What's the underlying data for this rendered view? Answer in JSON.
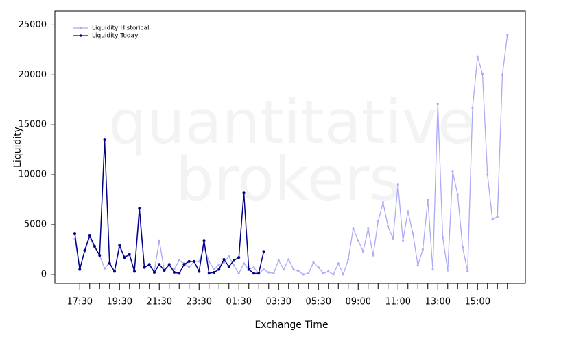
{
  "chart_data": {
    "type": "line",
    "watermark": [
      "quantitative",
      "brokers"
    ],
    "x_label": "Exchange Time",
    "y_label": "Liquidity",
    "legend_position": "top-left",
    "categories": [
      null,
      "17:30",
      null,
      null,
      null,
      null,
      null,
      null,
      null,
      "19:30",
      null,
      null,
      null,
      null,
      null,
      null,
      null,
      "21:30",
      null,
      null,
      null,
      null,
      null,
      null,
      null,
      "23:30",
      null,
      null,
      null,
      null,
      null,
      null,
      null,
      "01:30",
      null,
      null,
      null,
      null,
      null,
      null,
      null,
      "03:30",
      null,
      null,
      null,
      null,
      null,
      null,
      null,
      "05:30",
      null,
      null,
      null,
      null,
      null,
      null,
      null,
      "09:00",
      null,
      null,
      null,
      null,
      null,
      null,
      null,
      "11:00",
      null,
      null,
      null,
      null,
      null,
      null,
      null,
      "13:00",
      null,
      null,
      null,
      null,
      null,
      null,
      null,
      "15:00",
      null,
      null,
      null,
      null,
      null,
      null
    ],
    "ylim": [
      -900,
      26400
    ],
    "yticks": [
      0,
      5000,
      10000,
      15000,
      20000,
      25000
    ],
    "series": [
      {
        "name": "Liquidity Historical",
        "color": "#aaaaf5",
        "values": [
          3600,
          500,
          2300,
          3700,
          2700,
          1900,
          600,
          1200,
          300,
          2700,
          1800,
          1900,
          400,
          6000,
          700,
          900,
          300,
          3400,
          400,
          900,
          500,
          1400,
          1100,
          700,
          1300,
          1300,
          2700,
          1300,
          500,
          1000,
          1200,
          1800,
          900,
          100,
          1100,
          500,
          700,
          100,
          500,
          200,
          100,
          1400,
          500,
          1500,
          500,
          300,
          0,
          100,
          1200,
          700,
          100,
          300,
          0,
          1100,
          0,
          1500,
          4600,
          3400,
          2300,
          4600,
          1900,
          5300,
          7200,
          4800,
          3600,
          9000,
          3400,
          6300,
          4100,
          900,
          2500,
          7500,
          500,
          17100,
          3700,
          400,
          10300,
          8000,
          2700,
          300,
          16700,
          21800,
          20100,
          10000,
          5500,
          5800,
          20000,
          24000
        ]
      },
      {
        "name": "Liquidity Today",
        "color": "#00008b",
        "values": [
          4100,
          500,
          2400,
          3900,
          2800,
          1900,
          13500,
          1100,
          300,
          2900,
          1700,
          2000,
          300,
          6600,
          700,
          1000,
          200,
          1000,
          400,
          1000,
          200,
          100,
          1000,
          1300,
          1300,
          300,
          3400,
          100,
          200,
          500,
          1500,
          800,
          1400,
          1700,
          8200,
          500,
          100,
          100,
          2300,
          null,
          null,
          null,
          null,
          null,
          null,
          null,
          null,
          null,
          null,
          null,
          null,
          null,
          null,
          null,
          null,
          null,
          null,
          null,
          null,
          null,
          null,
          null,
          null,
          null,
          null,
          null,
          null,
          null,
          null,
          null,
          null,
          null,
          null,
          null,
          null,
          null,
          null,
          null,
          null,
          null,
          null,
          null,
          null,
          null,
          null,
          null,
          null,
          null
        ]
      }
    ]
  }
}
